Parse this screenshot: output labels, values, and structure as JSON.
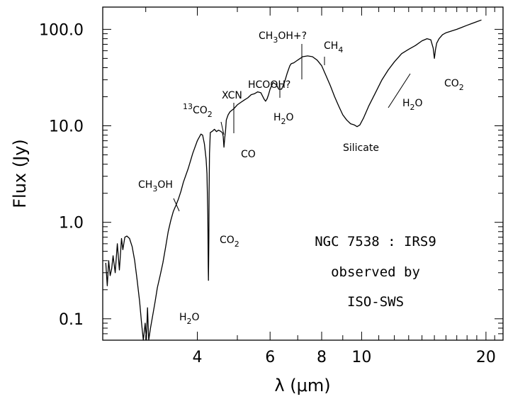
{
  "chart_data": {
    "type": "line",
    "xscale": "log",
    "yscale": "log",
    "xlim": [
      2.36,
      22.0
    ],
    "ylim": [
      0.06,
      170.0
    ],
    "xlabel": "λ (μm)",
    "ylabel": "Flux (Jy)",
    "xticks": [
      {
        "value": 4,
        "label": "4"
      },
      {
        "value": 6,
        "label": "6"
      },
      {
        "value": 8,
        "label": "8"
      },
      {
        "value": 10,
        "label": "10"
      },
      {
        "value": 20,
        "label": "20"
      }
    ],
    "yticks": [
      {
        "value": 0.1,
        "label": "0.1"
      },
      {
        "value": 1.0,
        "label": "1.0"
      },
      {
        "value": 10.0,
        "label": "10.0"
      },
      {
        "value": 100.0,
        "label": "100.0"
      }
    ],
    "grid": false,
    "series": [
      {
        "x": [
          2.4,
          2.42,
          2.44,
          2.46,
          2.48,
          2.5,
          2.53,
          2.56,
          2.59,
          2.62,
          2.64,
          2.67,
          2.7,
          2.74,
          2.78,
          2.82,
          2.86,
          2.9,
          2.93,
          2.96,
          2.99,
          3.01,
          3.03,
          3.05,
          3.08,
          3.12,
          3.16,
          3.2,
          3.25,
          3.3,
          3.35,
          3.4,
          3.45,
          3.5,
          3.55,
          3.6,
          3.65,
          3.7,
          3.8,
          3.9,
          4.0,
          4.08,
          4.12,
          4.16,
          4.2,
          4.22,
          4.24,
          4.25,
          4.255,
          4.26,
          4.265,
          4.27,
          4.28,
          4.3,
          4.35,
          4.4,
          4.45,
          4.5,
          4.55,
          4.6,
          4.62,
          4.64,
          4.66,
          4.68,
          4.7,
          4.75,
          4.8,
          4.9,
          5.0,
          5.1,
          5.2,
          5.3,
          5.4,
          5.5,
          5.6,
          5.7,
          5.8,
          5.85,
          5.9,
          5.95,
          6.0,
          6.1,
          6.2,
          6.3,
          6.4,
          6.5,
          6.6,
          6.7,
          6.75,
          6.85,
          6.95,
          7.05,
          7.2,
          7.4,
          7.6,
          7.8,
          8.0,
          8.2,
          8.4,
          8.6,
          8.8,
          9.0,
          9.2,
          9.4,
          9.6,
          9.75,
          9.9,
          10.1,
          10.4,
          10.8,
          11.2,
          11.6,
          12.0,
          12.5,
          13.0,
          13.5,
          14.0,
          14.4,
          14.7,
          14.9,
          15.0,
          15.1,
          15.2,
          15.4,
          15.7,
          16.0,
          16.5,
          17.0,
          17.5,
          18.0,
          18.5,
          19.0,
          19.5
        ],
        "y": [
          0.38,
          0.22,
          0.4,
          0.28,
          0.33,
          0.45,
          0.3,
          0.6,
          0.32,
          0.68,
          0.52,
          0.7,
          0.72,
          0.68,
          0.56,
          0.4,
          0.25,
          0.15,
          0.09,
          0.06,
          0.09,
          0.06,
          0.13,
          0.06,
          0.08,
          0.11,
          0.15,
          0.21,
          0.28,
          0.38,
          0.55,
          0.8,
          1.05,
          1.3,
          1.5,
          1.75,
          2.1,
          2.6,
          3.6,
          5.2,
          7.0,
          8.2,
          8.0,
          6.5,
          4.5,
          3.2,
          1.2,
          0.35,
          0.25,
          0.4,
          0.7,
          2.0,
          5.2,
          8.5,
          8.8,
          9.2,
          8.7,
          9.0,
          8.8,
          8.5,
          7.8,
          6.0,
          7.5,
          8.8,
          11.5,
          13.0,
          14.0,
          15.0,
          16.5,
          17.5,
          18.5,
          19.5,
          21.0,
          21.5,
          22.5,
          22.0,
          19.0,
          18.0,
          19.0,
          21.0,
          24.0,
          28.0,
          27.0,
          24.0,
          24.0,
          28.0,
          35.0,
          42.0,
          44.0,
          45.0,
          47.0,
          49.0,
          52.0,
          53.0,
          52.0,
          48.0,
          42.0,
          33.0,
          26.0,
          20.0,
          16.0,
          13.0,
          11.5,
          10.5,
          10.2,
          9.8,
          10.2,
          12.0,
          16.0,
          22.0,
          30.0,
          38.0,
          46.0,
          56.0,
          62.0,
          68.0,
          76.0,
          80.0,
          78.0,
          64.0,
          50.0,
          62.0,
          72.0,
          80.0,
          88.0,
          92.0,
          96.0,
          100.0,
          105.0,
          110.0,
          115.0,
          120.0,
          125.0
        ]
      }
    ],
    "annotations": [
      {
        "id": "h2o_3um",
        "parts": [
          [
            "H",
            "n"
          ],
          [
            "2",
            "sub"
          ],
          [
            "O",
            "n"
          ]
        ]
      },
      {
        "id": "ch3oh",
        "parts": [
          [
            "CH",
            "n"
          ],
          [
            "3",
            "sub"
          ],
          [
            "OH",
            "n"
          ]
        ]
      },
      {
        "id": "co2_15",
        "parts": [
          [
            "CO",
            "n"
          ],
          [
            "2",
            "sub"
          ]
        ]
      },
      {
        "id": "c13o2",
        "parts": [
          [
            "13",
            "sup"
          ],
          [
            "CO",
            "n"
          ],
          [
            "2",
            "sub"
          ]
        ]
      },
      {
        "id": "xcn",
        "parts": [
          [
            "XCN",
            "n"
          ]
        ]
      },
      {
        "id": "co",
        "parts": [
          [
            "CO",
            "n"
          ]
        ]
      },
      {
        "id": "hcooh",
        "parts": [
          [
            "HCOOH?",
            "n"
          ]
        ]
      },
      {
        "id": "ch3ohplus",
        "parts": [
          [
            "CH",
            "n"
          ],
          [
            "3",
            "sub"
          ],
          [
            "OH+?",
            "n"
          ]
        ]
      },
      {
        "id": "ch4",
        "parts": [
          [
            "CH",
            "n"
          ],
          [
            "4",
            "sub"
          ]
        ]
      },
      {
        "id": "h2o_6um",
        "parts": [
          [
            "H",
            "n"
          ],
          [
            "2",
            "sub"
          ],
          [
            "O",
            "n"
          ]
        ]
      },
      {
        "id": "silicate",
        "parts": [
          [
            "Silicate",
            "n"
          ]
        ]
      },
      {
        "id": "h2o_lib",
        "parts": [
          [
            "H",
            "n"
          ],
          [
            "2",
            "sub"
          ],
          [
            "O",
            "n"
          ]
        ]
      },
      {
        "id": "co2_152",
        "parts": [
          [
            "CO",
            "n"
          ],
          [
            "2",
            "sub"
          ]
        ]
      }
    ],
    "inset_text": [
      "NGC 7538 : IRS9",
      "observed by",
      "ISO-SWS"
    ]
  }
}
